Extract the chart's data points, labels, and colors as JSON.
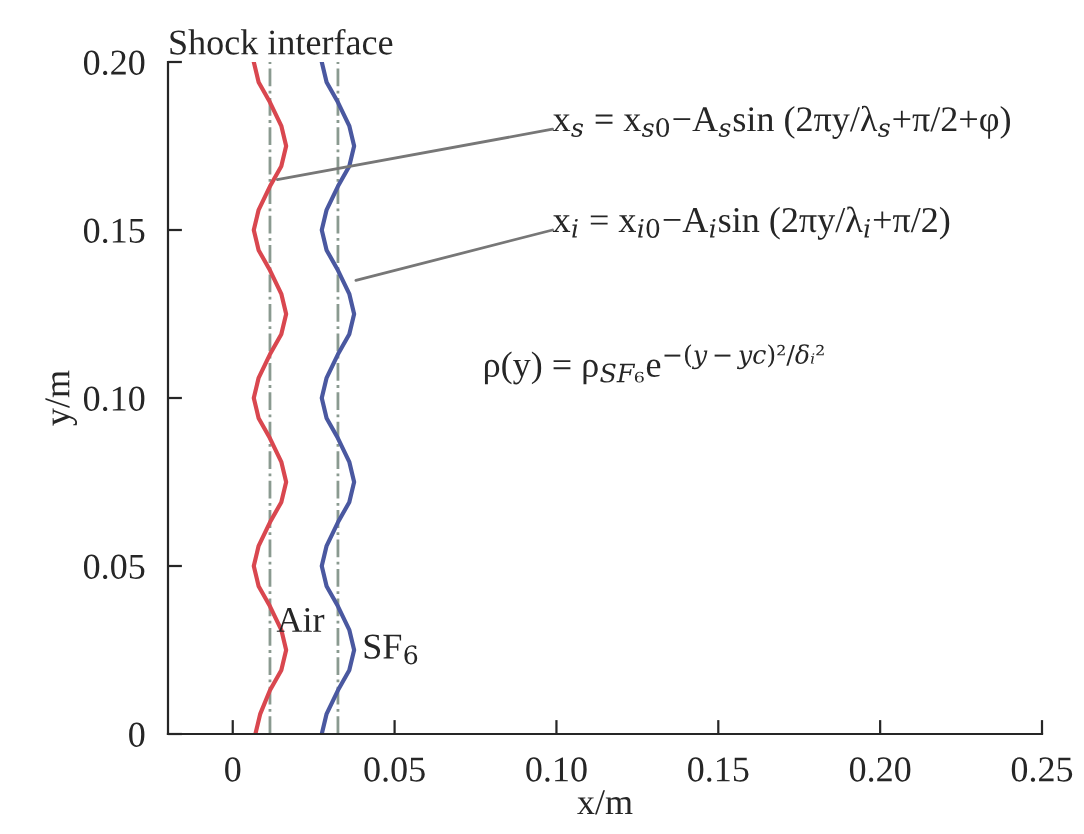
{
  "chart_data": {
    "type": "line",
    "title": "Shock interface",
    "xlabel": "x/m",
    "ylabel": "y/m",
    "xlim": [
      -0.02,
      0.25
    ],
    "xticks": [
      0,
      0.05,
      {
        "value": 0.1,
        "label": "0.10"
      },
      0.15,
      {
        "value": 0.2,
        "label": "0.20"
      },
      0.25
    ],
    "ylim": [
      0,
      0.2
    ],
    "yticks": [
      0,
      0.05,
      {
        "value": 0.1,
        "label": "0.10"
      },
      0.15,
      {
        "value": 0.2,
        "label": "0.20"
      }
    ],
    "grid": false,
    "legend": false,
    "marker": "none",
    "line_style": "solid",
    "series": [
      {
        "color": "#d9474f",
        "x": [
          0.007,
          0.0085,
          0.0115,
          0.015,
          0.0165,
          0.015,
          0.0115,
          0.008,
          0.0065,
          0.008,
          0.0115,
          0.015,
          0.0165,
          0.015,
          0.0115,
          0.008,
          0.0065,
          0.008,
          0.0115,
          0.015,
          0.0165,
          0.015,
          0.0115,
          0.008,
          0.0065,
          0.008,
          0.0115,
          0.015,
          0.0165,
          0.015,
          0.0115,
          0.008,
          0.0065
        ],
        "values": [
          0,
          0.006,
          0.013,
          0.019,
          0.025,
          0.031,
          0.038,
          0.044,
          0.05,
          0.056,
          0.063,
          0.069,
          0.075,
          0.081,
          0.088,
          0.094,
          0.1,
          0.106,
          0.113,
          0.119,
          0.125,
          0.131,
          0.138,
          0.144,
          0.15,
          0.156,
          0.163,
          0.169,
          0.175,
          0.181,
          0.188,
          0.194,
          0.2
        ]
      },
      {
        "color": "#4a58a0",
        "x": [
          0.0275,
          0.029,
          0.0325,
          0.036,
          0.0375,
          0.036,
          0.0325,
          0.029,
          0.0275,
          0.029,
          0.0325,
          0.036,
          0.0375,
          0.036,
          0.0325,
          0.029,
          0.0275,
          0.029,
          0.0325,
          0.036,
          0.0375,
          0.036,
          0.0325,
          0.029,
          0.0275,
          0.029,
          0.0325,
          0.036,
          0.0375,
          0.036,
          0.0325,
          0.029,
          0.0275
        ],
        "values": [
          0,
          0.006,
          0.013,
          0.019,
          0.025,
          0.031,
          0.038,
          0.044,
          0.05,
          0.056,
          0.063,
          0.069,
          0.075,
          0.081,
          0.088,
          0.094,
          0.1,
          0.106,
          0.113,
          0.119,
          0.125,
          0.131,
          0.138,
          0.144,
          0.15,
          0.156,
          0.163,
          0.169,
          0.175,
          0.181,
          0.188,
          0.194,
          0.2
        ]
      }
    ],
    "ref_lines": [
      {
        "axis": "x",
        "value": 0.0115,
        "color": "#8a9a90",
        "line_style": "dashdot"
      },
      {
        "axis": "x",
        "value": 0.0325,
        "color": "#8a9a90",
        "line_style": "dashdot"
      }
    ],
    "annotations": [
      "x$_{s}$ = x$_{s0}$−A$_{s}$sin (2πy/λ$_{s}$+π/2+φ)",
      "x$_{i}$ = x$_{i0}$−A$_{i}$sin (2πy/λ$_{i}$+π/2)",
      "ρ(y) = ρ$_{SF₆}$e$^{−(y−yc)²/δᵢ²}$",
      {
        "text": "Air",
        "x": 0.0135,
        "y": 0.033
      },
      {
        "text": "SF$_{6}$",
        "x": 0.04,
        "y": 0.025
      }
    ]
  }
}
